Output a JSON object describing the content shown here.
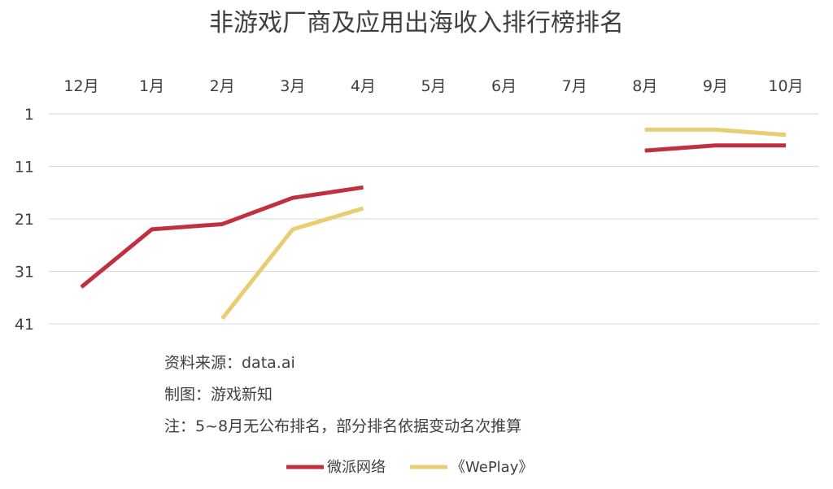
{
  "chart_data": {
    "type": "line",
    "title": "非游戏厂商及应用出海收入排行榜排名",
    "categories": [
      "12月",
      "1月",
      "2月",
      "3月",
      "4月",
      "5月",
      "6月",
      "7月",
      "8月",
      "9月",
      "10月"
    ],
    "y_tick_labels": [
      "1",
      "11",
      "21",
      "31",
      "41"
    ],
    "ylim": [
      1,
      41
    ],
    "y_inverted": true,
    "x_axis_position": "top",
    "grid": true,
    "legend_position": "bottom-center",
    "series": [
      {
        "name": "微派网络",
        "color": "#c0313f",
        "values": [
          34,
          23,
          22,
          17,
          15,
          null,
          null,
          null,
          8,
          7,
          7
        ]
      },
      {
        "name": "《WePlay》",
        "color": "#e8cd73",
        "values": [
          null,
          null,
          40,
          23,
          19,
          null,
          null,
          null,
          4,
          4,
          5
        ]
      }
    ],
    "notes": [
      "资料来源：data.ai",
      "制图：游戏新知",
      "注：5~8月无公布排名，部分排名依据变动名次推算"
    ]
  }
}
